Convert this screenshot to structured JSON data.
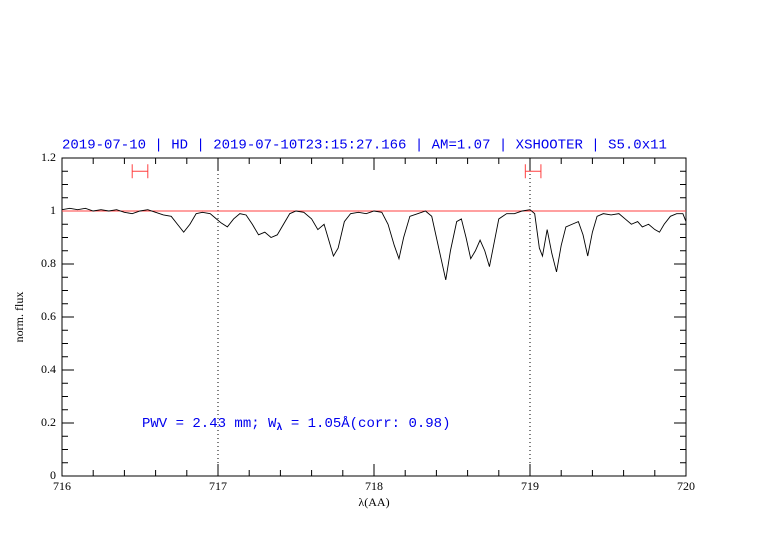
{
  "chart_data": {
    "type": "line",
    "title": "2019-07-10 | HD | 2019-07-10T23:15:27.166 | AM=1.07 | XSHOOTER | S5.0x11",
    "annotation": {
      "parts": [
        "PWV = 2.43 mm; W",
        "λ",
        " = 1.05Å(corr: 0.98)"
      ],
      "color": "#0000ee"
    },
    "xlabel": "λ(AA)",
    "ylabel": "norm. flux",
    "color": "#000000",
    "x": [
      716.0,
      716.05,
      716.1,
      716.15,
      716.2,
      716.25,
      716.3,
      716.35,
      716.4,
      716.45,
      716.5,
      716.55,
      716.6,
      716.65,
      716.7,
      716.74,
      716.78,
      716.82,
      716.86,
      716.9,
      716.95,
      716.98,
      717.02,
      717.06,
      717.1,
      717.14,
      717.18,
      717.22,
      717.26,
      717.3,
      717.34,
      717.38,
      717.42,
      717.46,
      717.5,
      717.55,
      717.6,
      717.64,
      717.68,
      717.71,
      717.74,
      717.77,
      717.81,
      717.85,
      717.9,
      717.95,
      718.0,
      718.05,
      718.09,
      718.13,
      718.16,
      718.19,
      718.23,
      718.28,
      718.33,
      718.37,
      718.4,
      718.43,
      718.46,
      718.49,
      718.53,
      718.56,
      718.59,
      718.62,
      718.65,
      718.68,
      718.71,
      718.74,
      718.77,
      718.8,
      718.85,
      718.9,
      718.95,
      719.0,
      719.03,
      719.06,
      719.08,
      719.11,
      719.14,
      719.17,
      719.2,
      719.23,
      719.27,
      719.31,
      719.34,
      719.37,
      719.4,
      719.43,
      719.47,
      719.52,
      719.57,
      719.61,
      719.65,
      719.69,
      719.72,
      719.76,
      719.8,
      719.83,
      719.86,
      719.9,
      719.94,
      719.98,
      720.0
    ],
    "values": [
      1.005,
      1.01,
      1.005,
      1.01,
      1.0,
      1.005,
      1.0,
      1.005,
      0.995,
      0.99,
      1.0,
      1.005,
      0.995,
      0.985,
      0.98,
      0.95,
      0.92,
      0.95,
      0.99,
      0.995,
      0.99,
      0.975,
      0.955,
      0.94,
      0.97,
      0.99,
      0.985,
      0.95,
      0.91,
      0.92,
      0.9,
      0.91,
      0.95,
      0.99,
      1.0,
      0.995,
      0.97,
      0.93,
      0.95,
      0.89,
      0.83,
      0.86,
      0.96,
      0.99,
      0.995,
      0.99,
      1.0,
      0.995,
      0.95,
      0.87,
      0.82,
      0.9,
      0.98,
      0.99,
      1.0,
      0.98,
      0.9,
      0.82,
      0.74,
      0.85,
      0.96,
      0.97,
      0.9,
      0.82,
      0.85,
      0.89,
      0.85,
      0.79,
      0.88,
      0.97,
      0.99,
      0.99,
      1.0,
      1.005,
      0.99,
      0.86,
      0.83,
      0.93,
      0.84,
      0.77,
      0.87,
      0.94,
      0.95,
      0.96,
      0.91,
      0.83,
      0.92,
      0.98,
      0.99,
      0.985,
      0.99,
      0.97,
      0.95,
      0.96,
      0.94,
      0.95,
      0.93,
      0.92,
      0.95,
      0.98,
      0.99,
      0.99,
      0.96
    ],
    "reference_line": {
      "value": 1,
      "color": "#ff4040"
    },
    "vlines": [
      717,
      719
    ],
    "ranges": [
      {
        "from": 716.45,
        "to": 716.55,
        "y": 1.15,
        "color": "#ff4040"
      },
      {
        "from": 718.97,
        "to": 719.07,
        "y": 1.15,
        "color": "#ff4040"
      }
    ],
    "xlim": [
      716,
      720
    ],
    "ylim": [
      0,
      1.2
    ],
    "xticks": [
      716,
      717,
      718,
      719,
      720
    ],
    "yticks": [
      0,
      0.2,
      0.4,
      0.6,
      0.8,
      1,
      1.2
    ],
    "xminorticks": [
      716.2,
      716.4,
      716.6,
      716.8,
      717.2,
      717.4,
      717.6,
      717.8,
      718.2,
      718.4,
      718.6,
      718.8,
      719.2,
      719.4,
      719.6,
      719.8
    ],
    "yminorticks": [
      0.05,
      0.1,
      0.15,
      0.25,
      0.3,
      0.35,
      0.45,
      0.5,
      0.55,
      0.65,
      0.7,
      0.75,
      0.85,
      0.9,
      0.95,
      1.05,
      1.1,
      1.15
    ]
  }
}
